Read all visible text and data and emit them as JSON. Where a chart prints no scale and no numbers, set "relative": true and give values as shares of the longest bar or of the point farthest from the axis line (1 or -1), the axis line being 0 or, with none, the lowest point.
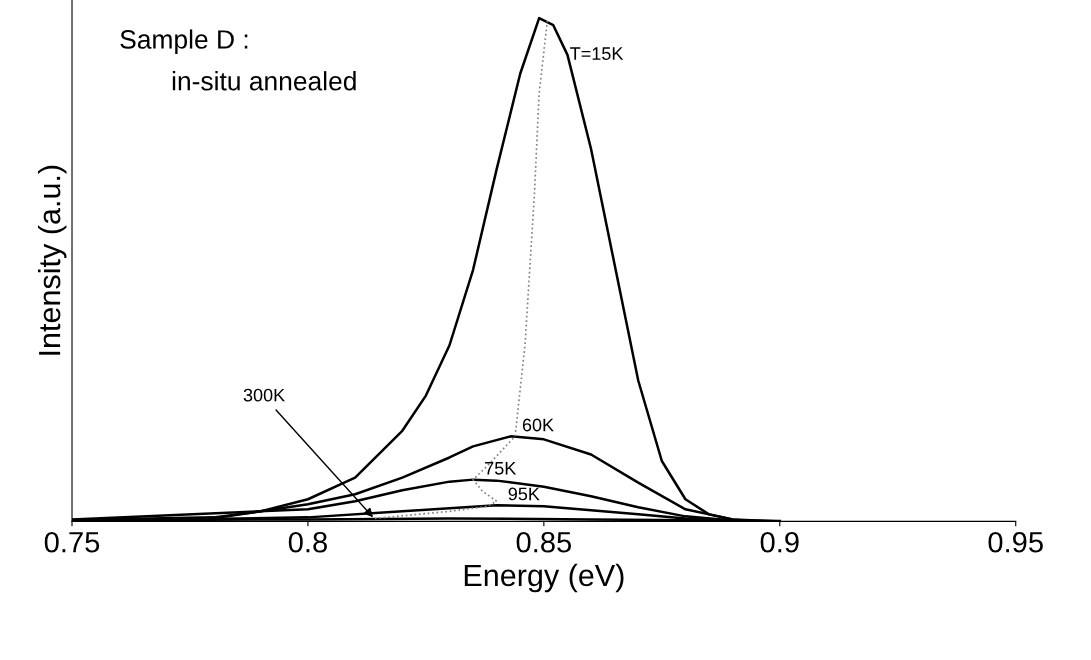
{
  "chart_data": {
    "type": "line",
    "relative": true,
    "xlabel": "Energy (eV)",
    "ylabel": "Intensity (a.u.)",
    "xlim": [
      0.75,
      0.95
    ],
    "xticks": [
      0.75,
      0.8,
      0.85,
      0.9,
      0.95
    ],
    "grid": false,
    "legend": false,
    "marker": "none",
    "tick_labels": "x",
    "annotations": [
      "Sample D :",
      "in-situ annealed",
      {
        "text": "300K",
        "x": 0.8142,
        "y": 0.004
      }
    ],
    "series": [
      {
        "name": "T=15K",
        "color": "#000000",
        "line_style": "solid",
        "x": [
          0.75,
          0.78,
          0.79,
          0.8,
          0.81,
          0.82,
          0.825,
          0.83,
          0.835,
          0.84,
          0.845,
          0.849,
          0.852,
          0.855,
          0.86,
          0.865,
          0.87,
          0.875,
          0.88,
          0.885,
          0.89,
          0.9
        ],
        "values": [
          0.003,
          0.008,
          0.02,
          0.044,
          0.087,
          0.18,
          0.25,
          0.35,
          0.5,
          0.7,
          0.89,
          1.0,
          0.986,
          0.927,
          0.74,
          0.51,
          0.28,
          0.12,
          0.044,
          0.014,
          0.004,
          0
        ]
      },
      {
        "name": "60K",
        "color": "#000000",
        "line_style": "solid",
        "x": [
          0.75,
          0.78,
          0.8,
          0.81,
          0.82,
          0.83,
          0.835,
          0.843,
          0.85,
          0.86,
          0.87,
          0.88,
          0.89,
          0.895
        ],
        "values": [
          0.002,
          0.006,
          0.034,
          0.054,
          0.087,
          0.127,
          0.149,
          0.169,
          0.163,
          0.133,
          0.077,
          0.024,
          0.004,
          0
        ]
      },
      {
        "name": "75K",
        "color": "#000000",
        "line_style": "solid",
        "x": [
          0.75,
          0.8,
          0.81,
          0.82,
          0.83,
          0.835,
          0.84,
          0.85,
          0.86,
          0.87,
          0.88,
          0.89,
          0.893
        ],
        "values": [
          0.004,
          0.024,
          0.04,
          0.062,
          0.079,
          0.083,
          0.081,
          0.069,
          0.05,
          0.028,
          0.01,
          0.002,
          0
        ]
      },
      {
        "name": "95K",
        "color": "#000000",
        "line_style": "solid",
        "x": [
          0.75,
          0.8,
          0.82,
          0.83,
          0.84,
          0.85,
          0.86,
          0.87,
          0.88,
          0.89,
          0.891
        ],
        "values": [
          0.001,
          0.008,
          0.02,
          0.026,
          0.032,
          0.03,
          0.022,
          0.014,
          0.006,
          0.002,
          0
        ]
      },
      {
        "color": "#000000",
        "line_style": "solid",
        "x": [
          0.75,
          0.8,
          0.83,
          0.86,
          0.9
        ],
        "values": [
          0.002,
          0.004,
          0.006,
          0.004,
          0.001
        ]
      },
      {
        "color": "#808080",
        "line_style": "dotted",
        "x": [
          0.8142,
          0.83,
          0.838,
          0.84,
          0.837,
          0.835,
          0.838,
          0.8439,
          0.846,
          0.848,
          0.849,
          0.8508
        ],
        "values": [
          0.006,
          0.02,
          0.03,
          0.04,
          0.06,
          0.083,
          0.11,
          0.169,
          0.35,
          0.65,
          0.85,
          1.0
        ]
      }
    ]
  }
}
